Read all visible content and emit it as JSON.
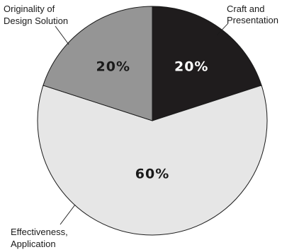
{
  "chart_data": {
    "type": "pie",
    "slices": [
      {
        "label_lines": [
          "Craft and",
          "Presentation"
        ],
        "value": 20,
        "value_label": "20%",
        "color": "#1f1c1d",
        "text_color": "#ffffff"
      },
      {
        "label_lines": [
          "Effectiveness,",
          "Application"
        ],
        "value": 60,
        "value_label": "60%",
        "color": "#e6e6e6",
        "text_color": "#1a1a1a"
      },
      {
        "label_lines": [
          "Originality of",
          "Design Solution"
        ],
        "value": 20,
        "value_label": "20%",
        "color": "#959595",
        "text_color": "#1a1a1a"
      }
    ]
  }
}
